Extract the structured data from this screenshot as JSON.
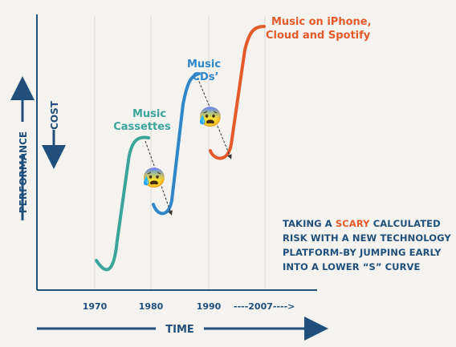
{
  "colors": {
    "axis": "#1f4f7a",
    "cassettes": "#3aa59a",
    "cds": "#2f86c8",
    "iphone": "#e55a2b",
    "grid": "#dcdad4",
    "text": "#1f4f7a"
  },
  "axes": {
    "x_label": "TIME",
    "y_label": "PERFORMANCE",
    "cost_label": "COST"
  },
  "ticks": [
    {
      "label": "1970"
    },
    {
      "label": "1980"
    },
    {
      "label": "1990"
    },
    {
      "label": "----2007---->"
    }
  ],
  "curves": [
    {
      "name": "cassettes",
      "label_lines": [
        "Music",
        "Cassettes"
      ]
    },
    {
      "name": "cds",
      "label_lines": [
        "Music",
        "CDs’"
      ]
    },
    {
      "name": "iphone",
      "label_lines": [
        "Music on iPhone,",
        "Cloud and Spotify"
      ]
    }
  ],
  "emoji": {
    "icon": "anxious-face-icon",
    "glyph": "😰"
  },
  "note": {
    "before": "TAKING A ",
    "highlight": "SCARY",
    "after": " CALCULATED RISK WITH A NEW TECHNOLOGY PLATFORM-BY JUMPING EARLY INTO A LOWER “S” CURVE"
  }
}
